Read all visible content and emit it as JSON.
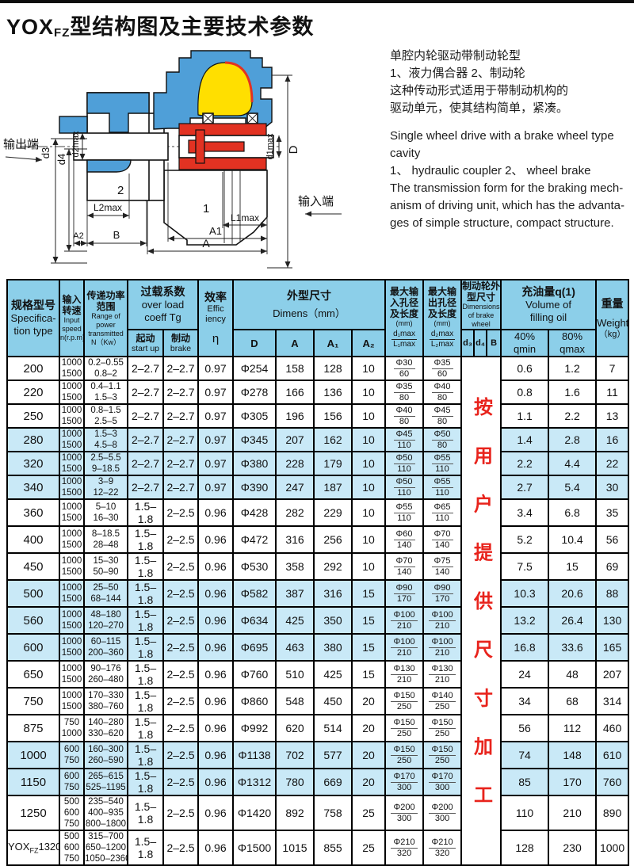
{
  "page": {
    "title_parts": [
      "YOX",
      "FZ",
      "型结构图及主要技术参数"
    ]
  },
  "description": {
    "zh": [
      "单腔内轮驱动带制动轮型",
      "1、液力偶合器  2、制动轮",
      "这种传动形式适用于带制动机构的",
      "驱动单元，使其结构简单，紧凑。"
    ],
    "en": [
      "Single wheel drive with a brake wheel type",
      "cavity",
      "1、 hydraulic coupler  2、 wheel brake",
      "The transmission form for the braking mech-",
      "anism of driving unit, which has the advanta-",
      "ges of simple structure, compact structure."
    ]
  },
  "diagram": {
    "labels": {
      "output_end": "输出端",
      "input_end": "输入端",
      "d3": "d3",
      "d4": "d4",
      "d2max": "d2max",
      "D": "D",
      "d1max": "d1max",
      "L2max": "L2max",
      "A2": "A2",
      "B": "B",
      "L1max": "L1max",
      "A1": "A1",
      "A": "A",
      "part_coupler": "1",
      "part_brake": "2"
    }
  },
  "colors": {
    "header_bg": "#8ccfe9",
    "row_alt": "#c9e9f7",
    "note_red": "#e8231c",
    "diagram_blue": "#4f9fd8",
    "diagram_red": "#e23222",
    "diagram_yellow": "#ffdf00",
    "grid": "#000000"
  },
  "table": {
    "note_vertical": "按用户提供尺寸加工",
    "headers": {
      "spec": {
        "zh": "规格型号",
        "en1": "Specifica-",
        "en2": "tion type"
      },
      "speed": {
        "zh1": "输入",
        "zh2": "转速",
        "en1": "Input",
        "en2": "speed",
        "en3": "n(r.p.m)"
      },
      "power": {
        "zh1": "传递功率",
        "zh2": "范围",
        "en1": "Range of",
        "en2": "power",
        "en3": "transmitted",
        "en4": "N（Kw）"
      },
      "overload": {
        "zh": "过载系数",
        "en1": "over load",
        "en2": "coeff  Tg",
        "start_zh": "起动",
        "start_en": "start up",
        "brake_zh": "制动",
        "brake_en": "brake"
      },
      "eff": {
        "zh": "效率",
        "en1": "Effic",
        "en2": "iency",
        "sym": "η"
      },
      "dims": {
        "zh": "外型尺寸",
        "en": "Dimens（mm）",
        "cols": [
          "D",
          "A",
          "A₁",
          "A₂"
        ]
      },
      "din": {
        "zh1": "最大输",
        "zh2": "入孔径",
        "zh3": "及长度",
        "zh4": "(mm)",
        "top": "d₁max",
        "bot": "L₁max"
      },
      "dout": {
        "zh1": "最大输",
        "zh2": "出孔径",
        "zh3": "及长度",
        "zh4": "(mm)",
        "top": "d₂max",
        "bot": "L₂max"
      },
      "bwheel": {
        "zh1": "制动轮外",
        "zh2": "型尺寸",
        "en1": "Dimensions",
        "en2": "of brake",
        "en3": "wheel",
        "cols": [
          "d₃",
          "d₄",
          "B"
        ]
      },
      "oil": {
        "zh": "充油量q(1)",
        "en1": "Volume of",
        "en2": "filling oil",
        "c1a": "40%",
        "c1b": "qmin",
        "c2a": "80%",
        "c2b": "qmax"
      },
      "weight": {
        "zh": "重量",
        "en": "Weight",
        "unit": "（kg）"
      }
    },
    "rows": [
      {
        "model": "200",
        "speeds": [
          "1000",
          "1500"
        ],
        "power": [
          "0.2–0.55",
          "0.8–2"
        ],
        "start": "2–2.7",
        "brake": "2–2.7",
        "eff": "0.97",
        "D": "Φ254",
        "A": "158",
        "A1": "128",
        "A2": "10",
        "din": {
          "d": "Φ30",
          "l": "60"
        },
        "dout": {
          "d": "Φ35",
          "l": "60"
        },
        "qmin": "0.6",
        "qmax": "1.2",
        "weight": "7",
        "shade": false
      },
      {
        "model": "220",
        "speeds": [
          "1000",
          "1500"
        ],
        "power": [
          "0.4–1.1",
          "1.5–3"
        ],
        "start": "2–2.7",
        "brake": "2–2.7",
        "eff": "0.97",
        "D": "Φ278",
        "A": "166",
        "A1": "136",
        "A2": "10",
        "din": {
          "d": "Φ35",
          "l": "80"
        },
        "dout": {
          "d": "Φ40",
          "l": "80"
        },
        "qmin": "0.8",
        "qmax": "1.6",
        "weight": "11",
        "shade": false
      },
      {
        "model": "250",
        "speeds": [
          "1000",
          "1500"
        ],
        "power": [
          "0.8–1.5",
          "2.5–5"
        ],
        "start": "2–2.7",
        "brake": "2–2.7",
        "eff": "0.97",
        "D": "Φ305",
        "A": "196",
        "A1": "156",
        "A2": "10",
        "din": {
          "d": "Φ40",
          "l": "80"
        },
        "dout": {
          "d": "Φ45",
          "l": "80"
        },
        "qmin": "1.1",
        "qmax": "2.2",
        "weight": "13",
        "shade": false
      },
      {
        "model": "280",
        "speeds": [
          "1000",
          "1500"
        ],
        "power": [
          "1.5–3",
          "4.5–8"
        ],
        "start": "2–2.7",
        "brake": "2–2.7",
        "eff": "0.97",
        "D": "Φ345",
        "A": "207",
        "A1": "162",
        "A2": "10",
        "din": {
          "d": "Φ45",
          "l": "110"
        },
        "dout": {
          "d": "Φ50",
          "l": "80"
        },
        "qmin": "1.4",
        "qmax": "2.8",
        "weight": "16",
        "shade": true
      },
      {
        "model": "320",
        "speeds": [
          "1000",
          "1500"
        ],
        "power": [
          "2.5–5.5",
          "9–18.5"
        ],
        "start": "2–2.7",
        "brake": "2–2.7",
        "eff": "0.97",
        "D": "Φ380",
        "A": "228",
        "A1": "179",
        "A2": "10",
        "din": {
          "d": "Φ50",
          "l": "110"
        },
        "dout": {
          "d": "Φ55",
          "l": "110"
        },
        "qmin": "2.2",
        "qmax": "4.4",
        "weight": "22",
        "shade": true
      },
      {
        "model": "340",
        "speeds": [
          "1000",
          "1500"
        ],
        "power": [
          "3–9",
          "12–22"
        ],
        "start": "2–2.7",
        "brake": "2–2.7",
        "eff": "0.97",
        "D": "Φ390",
        "A": "247",
        "A1": "187",
        "A2": "10",
        "din": {
          "d": "Φ50",
          "l": "110"
        },
        "dout": {
          "d": "Φ55",
          "l": "110"
        },
        "qmin": "2.7",
        "qmax": "5.4",
        "weight": "30",
        "shade": true
      },
      {
        "model": "360",
        "speeds": [
          "1000",
          "1500"
        ],
        "power": [
          "5–10",
          "16–30"
        ],
        "start": "1.5–1.8",
        "brake": "2–2.5",
        "eff": "0.96",
        "D": "Φ428",
        "A": "282",
        "A1": "229",
        "A2": "10",
        "din": {
          "d": "Φ55",
          "l": "110"
        },
        "dout": {
          "d": "Φ65",
          "l": "110"
        },
        "qmin": "3.4",
        "qmax": "6.8",
        "weight": "35",
        "shade": false
      },
      {
        "model": "400",
        "speeds": [
          "1000",
          "1500"
        ],
        "power": [
          "8–18.5",
          "28–48"
        ],
        "start": "1.5–1.8",
        "brake": "2–2.5",
        "eff": "0.96",
        "D": "Φ472",
        "A": "316",
        "A1": "256",
        "A2": "10",
        "din": {
          "d": "Φ60",
          "l": "140"
        },
        "dout": {
          "d": "Φ70",
          "l": "140"
        },
        "qmin": "5.2",
        "qmax": "10.4",
        "weight": "56",
        "shade": false
      },
      {
        "model": "450",
        "speeds": [
          "1000",
          "1500"
        ],
        "power": [
          "15–30",
          "50–90"
        ],
        "start": "1.5–1.8",
        "brake": "2–2.5",
        "eff": "0.96",
        "D": "Φ530",
        "A": "358",
        "A1": "292",
        "A2": "10",
        "din": {
          "d": "Φ70",
          "l": "140"
        },
        "dout": {
          "d": "Φ75",
          "l": "140"
        },
        "qmin": "7.5",
        "qmax": "15",
        "weight": "69",
        "shade": false
      },
      {
        "model": "500",
        "speeds": [
          "1000",
          "1500"
        ],
        "power": [
          "25–50",
          "68–144"
        ],
        "start": "1.5–1.8",
        "brake": "2–2.5",
        "eff": "0.96",
        "D": "Φ582",
        "A": "387",
        "A1": "316",
        "A2": "15",
        "din": {
          "d": "Φ90",
          "l": "170"
        },
        "dout": {
          "d": "Φ90",
          "l": "170"
        },
        "qmin": "10.3",
        "qmax": "20.6",
        "weight": "88",
        "shade": true
      },
      {
        "model": "560",
        "speeds": [
          "1000",
          "1500"
        ],
        "power": [
          "48–180",
          "120–270"
        ],
        "start": "1.5–1.8",
        "brake": "2–2.5",
        "eff": "0.96",
        "D": "Φ634",
        "A": "425",
        "A1": "350",
        "A2": "15",
        "din": {
          "d": "Φ100",
          "l": "210"
        },
        "dout": {
          "d": "Φ100",
          "l": "210"
        },
        "qmin": "13.2",
        "qmax": "26.4",
        "weight": "130",
        "shade": true
      },
      {
        "model": "600",
        "speeds": [
          "1000",
          "1500"
        ],
        "power": [
          "60–115",
          "200–360"
        ],
        "start": "1.5–1.8",
        "brake": "2–2.5",
        "eff": "0.96",
        "D": "Φ695",
        "A": "463",
        "A1": "380",
        "A2": "15",
        "din": {
          "d": "Φ100",
          "l": "210"
        },
        "dout": {
          "d": "Φ100",
          "l": "210"
        },
        "qmin": "16.8",
        "qmax": "33.6",
        "weight": "165",
        "shade": true
      },
      {
        "model": "650",
        "speeds": [
          "1000",
          "1500"
        ],
        "power": [
          "90–176",
          "260–480"
        ],
        "start": "1.5–1.8",
        "brake": "2–2.5",
        "eff": "0.96",
        "D": "Φ760",
        "A": "510",
        "A1": "425",
        "A2": "15",
        "din": {
          "d": "Φ130",
          "l": "210"
        },
        "dout": {
          "d": "Φ130",
          "l": "210"
        },
        "qmin": "24",
        "qmax": "48",
        "weight": "207",
        "shade": false
      },
      {
        "model": "750",
        "speeds": [
          "1000",
          "1500"
        ],
        "power": [
          "170–330",
          "380–760"
        ],
        "start": "1.5–1.8",
        "brake": "2–2.5",
        "eff": "0.96",
        "D": "Φ860",
        "A": "548",
        "A1": "450",
        "A2": "20",
        "din": {
          "d": "Φ150",
          "l": "250"
        },
        "dout": {
          "d": "Φ140",
          "l": "250"
        },
        "qmin": "34",
        "qmax": "68",
        "weight": "314",
        "shade": false
      },
      {
        "model": "875",
        "speeds": [
          "750",
          "1000"
        ],
        "power": [
          "140–280",
          "330–620"
        ],
        "start": "1.5–1.8",
        "brake": "2–2.5",
        "eff": "0.96",
        "D": "Φ992",
        "A": "620",
        "A1": "514",
        "A2": "20",
        "din": {
          "d": "Φ150",
          "l": "250"
        },
        "dout": {
          "d": "Φ150",
          "l": "250"
        },
        "qmin": "56",
        "qmax": "112",
        "weight": "460",
        "shade": false
      },
      {
        "model": "1000",
        "speeds": [
          "600",
          "750"
        ],
        "power": [
          "160–300",
          "260–590"
        ],
        "start": "1.5–1.8",
        "brake": "2–2.5",
        "eff": "0.96",
        "D": "Φ1138",
        "A": "702",
        "A1": "577",
        "A2": "20",
        "din": {
          "d": "Φ150",
          "l": "250"
        },
        "dout": {
          "d": "Φ150",
          "l": "250"
        },
        "qmin": "74",
        "qmax": "148",
        "weight": "610",
        "shade": true
      },
      {
        "model": "1150",
        "speeds": [
          "600",
          "750"
        ],
        "power": [
          "265–615",
          "525–1195"
        ],
        "start": "1.5–1.8",
        "brake": "2–2.5",
        "eff": "0.96",
        "D": "Φ1312",
        "A": "780",
        "A1": "669",
        "A2": "20",
        "din": {
          "d": "Φ170",
          "l": "300"
        },
        "dout": {
          "d": "Φ170",
          "l": "300"
        },
        "qmin": "85",
        "qmax": "170",
        "weight": "760",
        "shade": true
      },
      {
        "model": "1250",
        "speeds": [
          "500",
          "600",
          "750"
        ],
        "power": [
          "235–540",
          "400–935",
          "800–1800"
        ],
        "start": "1.5–1.8",
        "brake": "2–2.5",
        "eff": "0.96",
        "D": "Φ1420",
        "A": "892",
        "A1": "758",
        "A2": "25",
        "din": {
          "d": "Φ200",
          "l": "300"
        },
        "dout": {
          "d": "Φ200",
          "l": "300"
        },
        "qmin": "110",
        "qmax": "210",
        "weight": "890",
        "shade": false
      },
      {
        "model": "YOXFZ1320",
        "model_parts": [
          "YOX",
          "FZ",
          "1320"
        ],
        "speeds": [
          "500",
          "600",
          "750"
        ],
        "power": [
          "315–700",
          "650–1200",
          "1050–2360"
        ],
        "start": "1.5–1.8",
        "brake": "2–2.5",
        "eff": "0.96",
        "D": "Φ1500",
        "A": "1015",
        "A1": "855",
        "A2": "25",
        "din": {
          "d": "Φ210",
          "l": "320"
        },
        "dout": {
          "d": "Φ210",
          "l": "320"
        },
        "qmin": "128",
        "qmax": "230",
        "weight": "1000",
        "shade": false
      }
    ]
  }
}
